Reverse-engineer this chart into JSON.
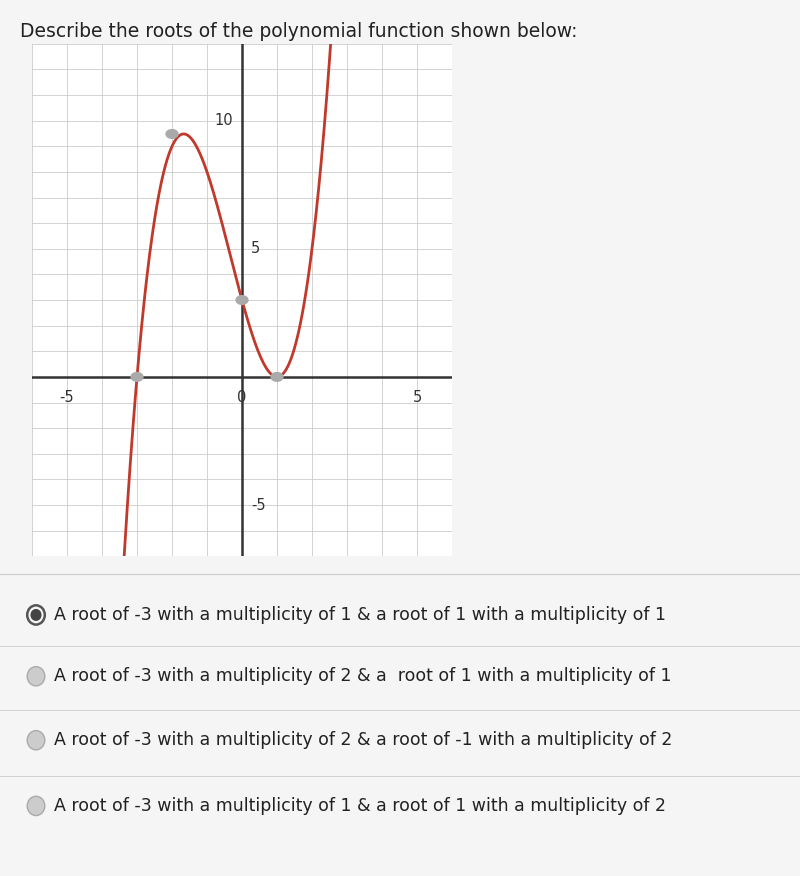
{
  "title": "Describe the roots of the polynomial function shown below:",
  "xlim": [
    -6,
    6
  ],
  "ylim": [
    -7,
    13
  ],
  "xtick_positions": [
    -5,
    0,
    5
  ],
  "ytick_positions": [
    -5,
    10
  ],
  "ytick_label_5": 5,
  "curve_color": "#c0392b",
  "curve_linewidth": 2.0,
  "grid_color": "#cccccc",
  "axis_color": "#333333",
  "background_color": "#ffffff",
  "dot_color": "#aaaaaa",
  "dot_points": [
    [
      -3,
      0
    ],
    [
      -2,
      9.481
    ],
    [
      0,
      3.0
    ],
    [
      1,
      0
    ]
  ],
  "options": [
    "A root of -3 with a multiplicity of 1 & a root of 1 with a multiplicity of 1",
    "A root of -3 with a multiplicity of 2 & a  root of 1 with a multiplicity of 1",
    "A root of -3 with a multiplicity of 2 & a root of -1 with a multiplicity of 2",
    "A root of -3 with a multiplicity of 1 & a root of 1 with a multiplicity of 2"
  ],
  "selected_option": 0,
  "option_fontsize": 12.5,
  "title_fontsize": 13.5,
  "figure_bg": "#f5f5f5",
  "divider_color": "#d0d0d0"
}
